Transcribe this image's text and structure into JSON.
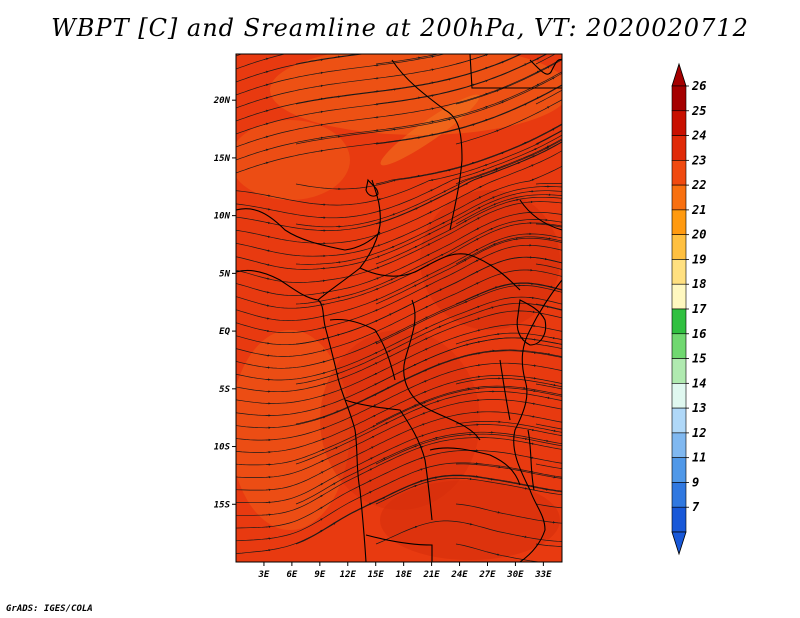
{
  "title": "WBPT [C] and Sreamline at 200hPa, VT: 2020020712",
  "footer": "GrADS: IGES/COLA",
  "colors": {
    "field_base": "#e83a10",
    "field_light": "#f06018",
    "field_dark": "#d62e0c",
    "streamline": "#1a1a1a",
    "border": "#000000"
  },
  "map": {
    "lon_range": [
      0,
      35
    ],
    "lat_range": [
      -20,
      24
    ],
    "lon_ticks": [
      "3E",
      "6E",
      "9E",
      "12E",
      "15E",
      "18E",
      "21E",
      "24E",
      "27E",
      "30E",
      "33E"
    ],
    "lon_tick_values": [
      3,
      6,
      9,
      12,
      15,
      18,
      21,
      24,
      27,
      30,
      33
    ],
    "lat_ticks": [
      "20N",
      "15N",
      "10N",
      "5N",
      "EQ",
      "5S",
      "10S",
      "15S"
    ],
    "lat_tick_values": [
      20,
      15,
      10,
      5,
      0,
      -5,
      -10,
      -15
    ]
  },
  "colorbar": {
    "labels": [
      "26",
      "25",
      "24",
      "23",
      "22",
      "21",
      "20",
      "19",
      "18",
      "17",
      "16",
      "15",
      "14",
      "13",
      "12",
      "11",
      "9",
      "7"
    ],
    "colors": [
      "#a50000",
      "#c81000",
      "#e02a08",
      "#f04a10",
      "#f87010",
      "#ff9a10",
      "#ffc040",
      "#ffe080",
      "#fff8c0",
      "#30c040",
      "#70d870",
      "#b0eab0",
      "#e0f8f0",
      "#b0d8f8",
      "#80b8f0",
      "#5098e8",
      "#3078e0",
      "#1858d8"
    ],
    "top_color": "#a50000",
    "bottom_color": "#1858d8"
  }
}
